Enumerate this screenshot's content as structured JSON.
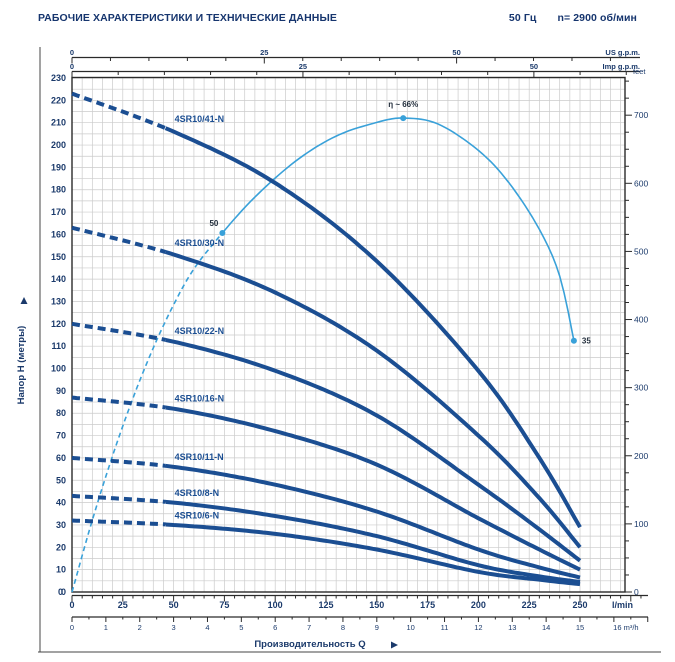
{
  "header": {
    "title": "РАБОЧИЕ ХАРАКТЕРИСТИКИ И ТЕХНИЧЕСКИЕ ДАННЫЕ",
    "frequency": "50 Гц",
    "speed": "n= 2900 об/мин"
  },
  "colors": {
    "navy_text": "#1b3a6b",
    "curve_navy": "#1b4e92",
    "efficiency_blue": "#39a1d9",
    "grid": "#cbcbcb",
    "axis": "#2a2a2a",
    "marker_text": "#1e2a38"
  },
  "chart_data": {
    "type": "line",
    "xlabel": "Производительность Q",
    "ylabel": "Напор H (метры)",
    "x_axes": {
      "us_gpm": {
        "unit": "US g.p.m.",
        "tick_labels": [
          0,
          25,
          50
        ],
        "lmin_per_unit": 3.7854,
        "minor_step": 5
      },
      "imp_gpm": {
        "unit": "Imp g.p.m.",
        "tick_labels": [
          0,
          25,
          50
        ],
        "lmin_per_unit": 4.5461,
        "minor_step": 5
      },
      "lmin": {
        "unit": "l/min",
        "tick_labels": [
          0,
          25,
          50,
          75,
          100,
          125,
          150,
          175,
          200,
          225,
          250
        ],
        "minor_step": 5
      },
      "m3h": {
        "unit": "16 m³/h",
        "tick_labels": [
          0,
          1,
          2,
          3,
          4,
          5,
          6,
          7,
          8,
          9,
          10,
          11,
          12,
          13,
          14,
          15
        ],
        "lmin_per_unit": 16.667,
        "minor_step": 0.5
      }
    },
    "y_axes": {
      "meters": {
        "min": 0,
        "max": 230,
        "label_step": 10,
        "grid_step": 5
      },
      "feet": {
        "unit": "feet",
        "tick_labels": [
          0,
          100,
          200,
          300,
          400,
          500,
          600,
          700
        ],
        "m_per_unit": 0.3048,
        "minor_step_ft": 25
      }
    },
    "dashed_below_lmin": 46,
    "series": [
      {
        "name": "4SR10/41-N",
        "points_lmin_m": [
          [
            0,
            223
          ],
          [
            50,
            206
          ],
          [
            100,
            183
          ],
          [
            150,
            148
          ],
          [
            200,
            99
          ],
          [
            230,
            60
          ],
          [
            250,
            29
          ]
        ]
      },
      {
        "name": "4SR10/30-N",
        "points_lmin_m": [
          [
            0,
            163
          ],
          [
            50,
            151
          ],
          [
            100,
            134
          ],
          [
            150,
            108
          ],
          [
            200,
            70
          ],
          [
            230,
            42
          ],
          [
            250,
            20
          ]
        ]
      },
      {
        "name": "4SR10/22-N",
        "points_lmin_m": [
          [
            0,
            120
          ],
          [
            50,
            112
          ],
          [
            100,
            99
          ],
          [
            150,
            79
          ],
          [
            200,
            48
          ],
          [
            230,
            28
          ],
          [
            250,
            14
          ]
        ]
      },
      {
        "name": "4SR10/16-N",
        "points_lmin_m": [
          [
            0,
            87
          ],
          [
            50,
            82
          ],
          [
            100,
            72
          ],
          [
            150,
            57
          ],
          [
            200,
            33
          ],
          [
            230,
            19
          ],
          [
            250,
            10
          ]
        ]
      },
      {
        "name": "4SR10/11-N",
        "points_lmin_m": [
          [
            0,
            60
          ],
          [
            50,
            56
          ],
          [
            100,
            48
          ],
          [
            150,
            36
          ],
          [
            200,
            19
          ],
          [
            230,
            11
          ],
          [
            250,
            6.5
          ]
        ]
      },
      {
        "name": "4SR10/8-N",
        "points_lmin_m": [
          [
            0,
            43
          ],
          [
            50,
            40
          ],
          [
            100,
            34
          ],
          [
            150,
            25
          ],
          [
            200,
            12
          ],
          [
            230,
            7
          ],
          [
            250,
            4.5
          ]
        ]
      },
      {
        "name": "4SR10/6-N",
        "points_lmin_m": [
          [
            0,
            32
          ],
          [
            50,
            30
          ],
          [
            100,
            26
          ],
          [
            150,
            19
          ],
          [
            200,
            9
          ],
          [
            230,
            5.5
          ],
          [
            250,
            3.5
          ]
        ]
      }
    ],
    "efficiency": {
      "axis_note": "efficiency % (unlabeled internal scale)",
      "dashed_below_lmin": 74,
      "points_lmin_pct": [
        [
          0,
          0
        ],
        [
          10,
          10
        ],
        [
          20,
          19
        ],
        [
          30,
          27
        ],
        [
          40,
          34
        ],
        [
          50,
          40
        ],
        [
          60,
          45
        ],
        [
          74,
          50
        ],
        [
          90,
          55
        ],
        [
          110,
          60
        ],
        [
          130,
          63.5
        ],
        [
          150,
          65.4
        ],
        [
          163,
          66
        ],
        [
          180,
          65.2
        ],
        [
          200,
          61.5
        ],
        [
          215,
          57
        ],
        [
          230,
          50.5
        ],
        [
          240,
          44
        ],
        [
          247,
          35
        ]
      ],
      "markers": [
        {
          "lmin": 74,
          "pct": 50,
          "label": "50"
        },
        {
          "lmin": 163,
          "pct": 66,
          "label": "η ~ 66%"
        },
        {
          "lmin": 247,
          "pct": 35,
          "label": "35"
        }
      ]
    }
  }
}
